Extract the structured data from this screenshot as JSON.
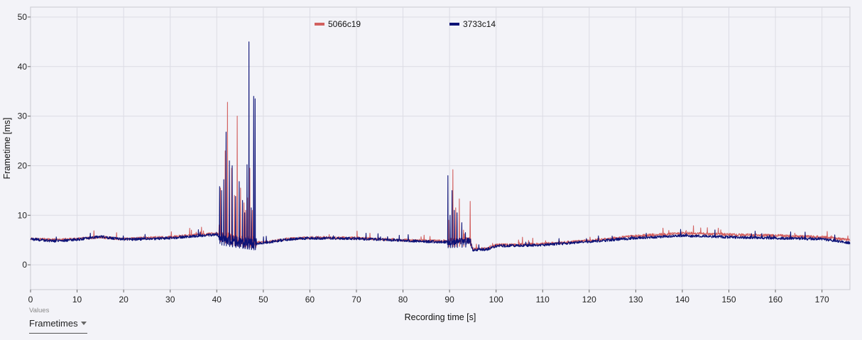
{
  "chart_data": {
    "type": "line",
    "title": "",
    "xlabel": "Recording time [s]",
    "ylabel": "Frametime [ms]",
    "xlim": [
      0,
      176
    ],
    "ylim": [
      -5,
      52
    ],
    "xticks": [
      0,
      10,
      20,
      30,
      40,
      50,
      60,
      70,
      80,
      90,
      100,
      110,
      120,
      130,
      140,
      150,
      160,
      170
    ],
    "yticks": [
      0,
      10,
      20,
      30,
      40,
      50
    ],
    "grid": true,
    "legend_position": "top-center",
    "series": [
      {
        "name": "5066c19",
        "color": "#d2605f",
        "baseline": [
          [
            0,
            5.3
          ],
          [
            5,
            5.0
          ],
          [
            10,
            5.2
          ],
          [
            15,
            5.6
          ],
          [
            20,
            5.2
          ],
          [
            30,
            5.6
          ],
          [
            35,
            6.0
          ],
          [
            40,
            6.3
          ],
          [
            41,
            5.8
          ],
          [
            44,
            5.0
          ],
          [
            48,
            4.6
          ],
          [
            50,
            4.5
          ],
          [
            55,
            5.2
          ],
          [
            60,
            5.5
          ],
          [
            70,
            5.4
          ],
          [
            80,
            5.0
          ],
          [
            88,
            4.8
          ],
          [
            92,
            4.9
          ],
          [
            94.5,
            5.0
          ],
          [
            95,
            3.2
          ],
          [
            98,
            3.3
          ],
          [
            100,
            4.0
          ],
          [
            110,
            4.2
          ],
          [
            120,
            4.9
          ],
          [
            130,
            5.8
          ],
          [
            140,
            6.4
          ],
          [
            150,
            6.1
          ],
          [
            160,
            5.9
          ],
          [
            170,
            5.6
          ],
          [
            176,
            5.0
          ]
        ],
        "spikes": [
          [
            40.8,
            15.5
          ],
          [
            41.8,
            23.0
          ],
          [
            42.3,
            32.8
          ],
          [
            43.2,
            19.5
          ],
          [
            43.8,
            14.0
          ],
          [
            44.4,
            30.0
          ],
          [
            45.1,
            15.5
          ],
          [
            45.8,
            12.5
          ],
          [
            46.2,
            11.0
          ],
          [
            46.6,
            13.5
          ],
          [
            47.1,
            19.5
          ],
          [
            47.6,
            11.0
          ],
          [
            89.8,
            9.0
          ],
          [
            90.7,
            19.2
          ],
          [
            91.3,
            11.5
          ],
          [
            92.1,
            13.3
          ],
          [
            93.0,
            7.0
          ],
          [
            94.4,
            12.8
          ]
        ]
      },
      {
        "name": "3733c14",
        "color": "#0c1277",
        "baseline": [
          [
            0,
            5.2
          ],
          [
            5,
            4.8
          ],
          [
            10,
            5.1
          ],
          [
            15,
            5.7
          ],
          [
            20,
            5.1
          ],
          [
            30,
            5.4
          ],
          [
            35,
            5.8
          ],
          [
            40,
            6.1
          ],
          [
            41,
            5.2
          ],
          [
            44,
            4.7
          ],
          [
            48,
            4.2
          ],
          [
            50,
            4.4
          ],
          [
            55,
            5.1
          ],
          [
            60,
            5.4
          ],
          [
            70,
            5.3
          ],
          [
            80,
            4.9
          ],
          [
            88,
            4.6
          ],
          [
            92,
            4.7
          ],
          [
            94.5,
            4.8
          ],
          [
            95,
            3.0
          ],
          [
            98,
            3.1
          ],
          [
            100,
            3.8
          ],
          [
            110,
            4.0
          ],
          [
            120,
            4.7
          ],
          [
            130,
            5.4
          ],
          [
            140,
            5.9
          ],
          [
            150,
            5.6
          ],
          [
            160,
            5.4
          ],
          [
            170,
            5.2
          ],
          [
            176,
            4.4
          ]
        ],
        "spikes": [
          [
            40.6,
            15.8
          ],
          [
            41.0,
            15.0
          ],
          [
            41.5,
            17.2
          ],
          [
            42.0,
            26.8
          ],
          [
            42.7,
            21.0
          ],
          [
            43.3,
            20.0
          ],
          [
            44.0,
            13.8
          ],
          [
            44.8,
            16.8
          ],
          [
            45.5,
            13.0
          ],
          [
            46.0,
            10.5
          ],
          [
            46.5,
            20.2
          ],
          [
            46.9,
            45.0
          ],
          [
            47.4,
            11.5
          ],
          [
            47.9,
            34.0
          ],
          [
            48.2,
            33.5
          ],
          [
            89.6,
            18.0
          ],
          [
            90.1,
            10.0
          ],
          [
            90.5,
            15.0
          ],
          [
            91.0,
            11.0
          ],
          [
            91.6,
            10.5
          ],
          [
            92.6,
            8.5
          ],
          [
            93.4,
            6.5
          ]
        ]
      }
    ]
  },
  "values_control": {
    "caption": "Values",
    "selected": "Frametimes"
  }
}
